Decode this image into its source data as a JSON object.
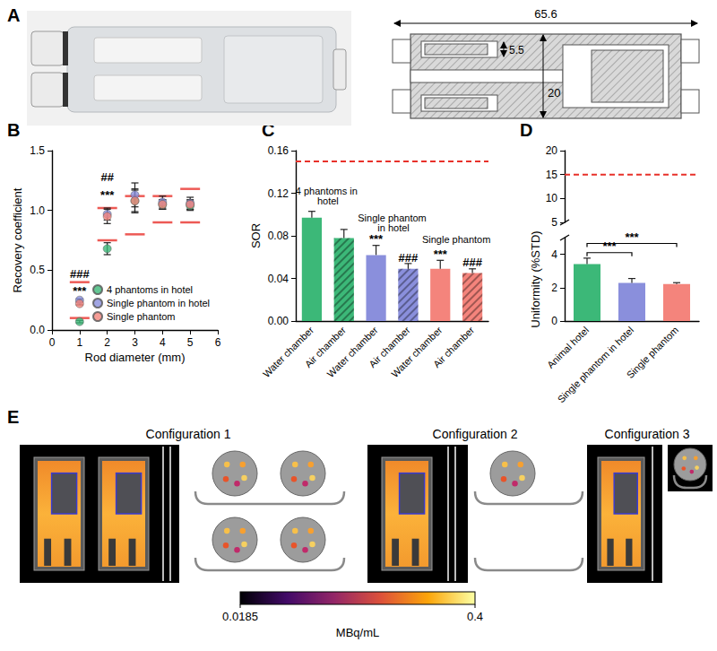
{
  "chart_data": [
    {
      "type": "scatter",
      "x": [
        1,
        2,
        3,
        4,
        5
      ],
      "xlabel": "Rod diameter (mm)",
      "ylabel": "Recovery coefficient",
      "xlim": [
        0,
        6
      ],
      "xticks": [
        0,
        1,
        2,
        3,
        4,
        5,
        6
      ],
      "ylim": [
        0,
        1.5
      ],
      "yticks": [
        {
          "value": 0,
          "label": "0.0"
        },
        0.5,
        {
          "value": 1,
          "label": "1.0"
        },
        1.5
      ],
      "grid": false,
      "legend": "lower right",
      "series": [
        {
          "name": "4 phantoms in hotel",
          "color": "#3cb878",
          "marker": "circle",
          "values": [
            0.07,
            0.68,
            1.08,
            1.05,
            1.04
          ],
          "errors": [
            0.01,
            0.05,
            0.1,
            0.04,
            0.04
          ]
        },
        {
          "name": "Single phantom in hotel",
          "color": "#8a8fdc",
          "marker": "circle",
          "values": [
            0.25,
            0.97,
            1.13,
            1.07,
            1.06
          ],
          "errors": [
            0.01,
            0.05,
            0.1,
            0.05,
            0.05
          ]
        },
        {
          "name": "Single phantom",
          "color": "#f4847c",
          "marker": "circle",
          "values": [
            0.22,
            0.95,
            1.08,
            1.05,
            1.05
          ],
          "errors": [
            0.01,
            0.06,
            0.09,
            0.04,
            0.04
          ]
        },
        {
          "color": "#e8312a",
          "marker": "dash",
          "values": [
            0.1,
            0.75,
            0.8,
            0.9,
            0.9
          ]
        },
        {
          "color": "#e8312a",
          "marker": "dash",
          "values": [
            0.4,
            1.02,
            1.12,
            1.12,
            1.18
          ]
        }
      ],
      "annotations": [
        {
          "text": "###",
          "x": 1,
          "y": 0.47
        },
        {
          "text": "***",
          "x": 1,
          "y": 0.33
        },
        {
          "text": "##",
          "x": 2,
          "y": 1.28
        },
        {
          "text": "***",
          "x": 2,
          "y": 1.13
        }
      ]
    },
    {
      "type": "bar",
      "categories": [
        "Water chamber",
        "Air chamber",
        "Water chamber",
        "Air chamber",
        "Water chamber",
        "Air chamber"
      ],
      "ylabel": "SOR",
      "ylim": [
        0,
        0.16
      ],
      "yticks": [
        {
          "value": 0,
          "label": "0.00"
        },
        0.04,
        0.08,
        0.12,
        0.16
      ],
      "grid": false,
      "values": [
        0.097,
        0.078,
        0.062,
        0.049,
        0.049,
        0.045
      ],
      "errors": [
        0.006,
        0.008,
        0.009,
        0.005,
        0.008,
        0.004
      ],
      "colors": [
        "#3cb878",
        "#3cb878",
        "#8a8fdc",
        "#8a8fdc",
        "#f4847c",
        "#f4847c"
      ],
      "reference_line": {
        "value": 0.15,
        "color": "#e8312a",
        "line_style": "dashed"
      },
      "groups": [
        {
          "label": "4 phantoms in hotel",
          "from": 0,
          "to": 1,
          "y": 0.108
        },
        {
          "label": "Single phantom in hotel",
          "from": 2,
          "to": 3,
          "y": 0.083
        },
        {
          "label": "Single phantom",
          "from": 4,
          "to": 5,
          "y": 0.072
        }
      ],
      "annotations": [
        {
          "text": "***",
          "x": 2,
          "y": 0.077
        },
        {
          "text": "###",
          "x": 3,
          "y": 0.059
        },
        {
          "text": "***",
          "x": 4,
          "y": 0.063
        },
        {
          "text": "###",
          "x": 5,
          "y": 0.055
        }
      ]
    },
    {
      "type": "bar",
      "categories": [
        "Animal hotel",
        "Single phantom in hotel",
        "Single phantom"
      ],
      "ylabel": "Uniformity (%STD)",
      "segments": [
        {
          "ylim": [
            0,
            5
          ],
          "yticks": [
            0,
            2,
            4
          ]
        },
        {
          "ylim": [
            5,
            20
          ],
          "yticks": [
            5,
            10,
            15,
            20
          ]
        }
      ],
      "grid": false,
      "values": [
        3.42,
        2.28,
        2.22
      ],
      "errors": [
        0.35,
        0.27,
        0.08
      ],
      "colors": [
        "#3cb878",
        "#8a8fdc",
        "#f4847c"
      ],
      "reference_line": {
        "value": 15,
        "color": "#e8312a",
        "line_style": "dashed"
      },
      "comparisons": [
        {
          "from": 0,
          "to": 1,
          "y": 4.1,
          "text": "***"
        },
        {
          "from": 0,
          "to": 2,
          "y": 4.65,
          "text": "***"
        }
      ]
    }
  ],
  "figure": {
    "panel_labels": [
      "A",
      "B",
      "C",
      "D",
      "E"
    ],
    "schematic": {
      "length": 65.6,
      "bore": 5.5,
      "diameter": 20
    },
    "configurations": [
      "Configuration 1",
      "Configuration 2",
      "Configuration 3"
    ],
    "colorbar": {
      "range": [
        0.0185,
        0.4
      ],
      "ticks": [
        0.0185,
        0.4
      ],
      "label": "MBq/mL"
    }
  }
}
